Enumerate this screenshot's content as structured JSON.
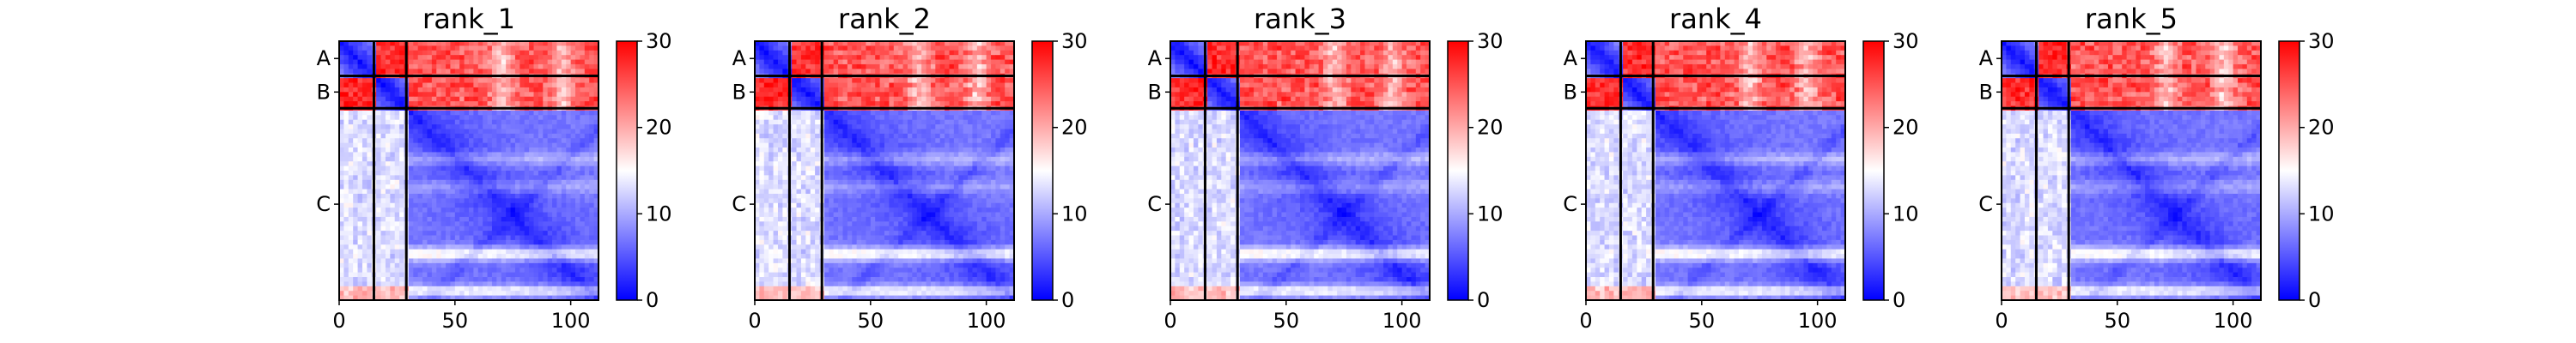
{
  "chart_data": {
    "type": "heatmap",
    "description_colormap": "bwr",
    "colormap_colors": {
      "low": "#0000ff",
      "mid": "#ffffff",
      "high": "#ff0000"
    },
    "frame_color": "#000000",
    "sequence_length": 112,
    "chains": [
      {
        "label": "A",
        "start": 0,
        "end": 15
      },
      {
        "label": "B",
        "start": 15,
        "end": 29
      },
      {
        "label": "C",
        "start": 29,
        "end": 112
      }
    ],
    "x_ticks": [
      {
        "value": 0,
        "label": "0"
      },
      {
        "value": 50,
        "label": "50"
      },
      {
        "value": 100,
        "label": "100"
      }
    ],
    "colorbar": {
      "vmin": 0,
      "vmax": 30,
      "ticks": [
        {
          "value": 0,
          "label": "0"
        },
        {
          "value": 10,
          "label": "10"
        },
        {
          "value": 20,
          "label": "20"
        },
        {
          "value": 30,
          "label": "30"
        }
      ]
    },
    "panels": [
      {
        "title": "rank_1",
        "seed": 1
      },
      {
        "title": "rank_2",
        "seed": 2
      },
      {
        "title": "rank_3",
        "seed": 3
      },
      {
        "title": "rank_4",
        "seed": 4
      },
      {
        "title": "rank_5",
        "seed": 5
      }
    ]
  }
}
